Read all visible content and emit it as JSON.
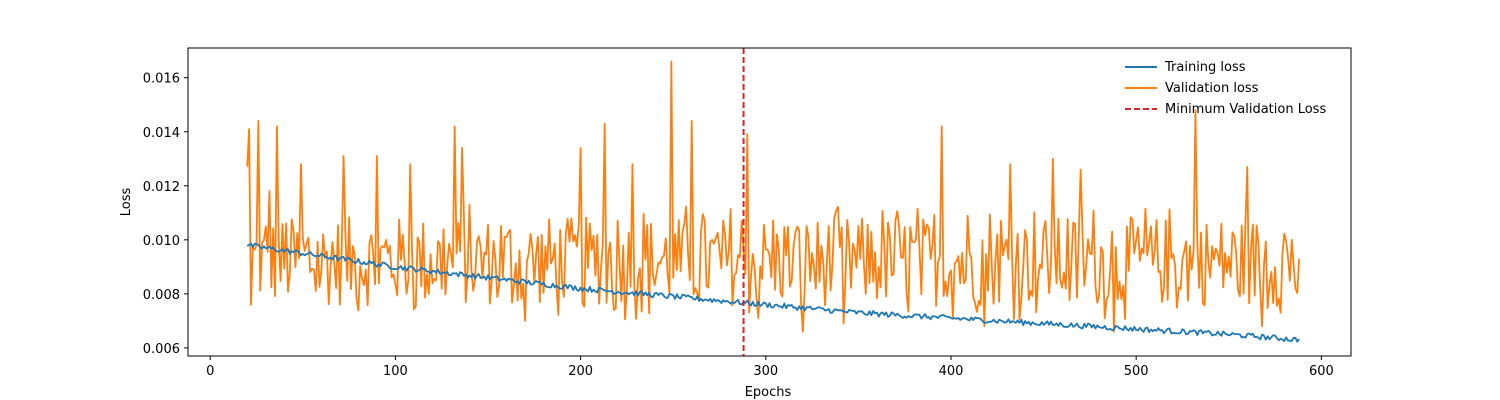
{
  "chart_data": {
    "type": "line",
    "title": "",
    "xlabel": "Epochs",
    "ylabel": "Loss",
    "xlim": [
      -12,
      616
    ],
    "ylim": [
      0.0057,
      0.0171
    ],
    "xticks": [
      0,
      100,
      200,
      300,
      400,
      500,
      600
    ],
    "yticks": [
      0.006,
      0.008,
      0.01,
      0.012,
      0.014,
      0.016
    ],
    "ytick_labels": [
      "0.006",
      "0.008",
      "0.010",
      "0.012",
      "0.014",
      "0.016"
    ],
    "grid": false,
    "legend_position": "top-right",
    "series": [
      {
        "name": "Training loss",
        "color": "#1f77b4",
        "x_start": 20,
        "x_end": 588,
        "trend_points": [
          [
            20,
            0.0098
          ],
          [
            100,
            0.009
          ],
          [
            150,
            0.0086
          ],
          [
            200,
            0.0082
          ],
          [
            250,
            0.0079
          ],
          [
            300,
            0.0076
          ],
          [
            350,
            0.0073
          ],
          [
            400,
            0.0071
          ],
          [
            450,
            0.0069
          ],
          [
            500,
            0.0067
          ],
          [
            550,
            0.0065
          ],
          [
            588,
            0.0063
          ]
        ],
        "noise_amplitude": 0.0001
      },
      {
        "name": "Validation loss",
        "color": "#ff7f0e",
        "x_start": 20,
        "x_end": 588,
        "anchor_points": [
          [
            20,
            0.0127
          ],
          [
            21,
            0.0141
          ],
          [
            22,
            0.0076
          ],
          [
            26,
            0.0144
          ],
          [
            32,
            0.0118
          ],
          [
            36,
            0.0142
          ],
          [
            49,
            0.0128
          ],
          [
            72,
            0.0131
          ],
          [
            90,
            0.0131
          ],
          [
            108,
            0.0128
          ],
          [
            132,
            0.0142
          ],
          [
            136,
            0.0134
          ],
          [
            170,
            0.007
          ],
          [
            200,
            0.0134
          ],
          [
            213,
            0.0143
          ],
          [
            228,
            0.0128
          ],
          [
            249,
            0.0166
          ],
          [
            260,
            0.0144
          ],
          [
            290,
            0.0139
          ],
          [
            296,
            0.0071
          ],
          [
            320,
            0.0066
          ],
          [
            342,
            0.0069
          ],
          [
            395,
            0.0142
          ],
          [
            418,
            0.0068
          ],
          [
            432,
            0.0128
          ],
          [
            455,
            0.013
          ],
          [
            470,
            0.0126
          ],
          [
            488,
            0.0066
          ],
          [
            532,
            0.0148
          ],
          [
            560,
            0.0127
          ],
          [
            568,
            0.0068
          ],
          [
            586,
            0.0082
          ],
          [
            588,
            0.0093
          ]
        ],
        "mean": 0.0092,
        "noise_amplitude": 0.0022
      }
    ],
    "min_val_loss_line": {
      "name": "Minimum Validation Loss",
      "x": 288,
      "color": "#d62728",
      "style": "dashed"
    }
  }
}
